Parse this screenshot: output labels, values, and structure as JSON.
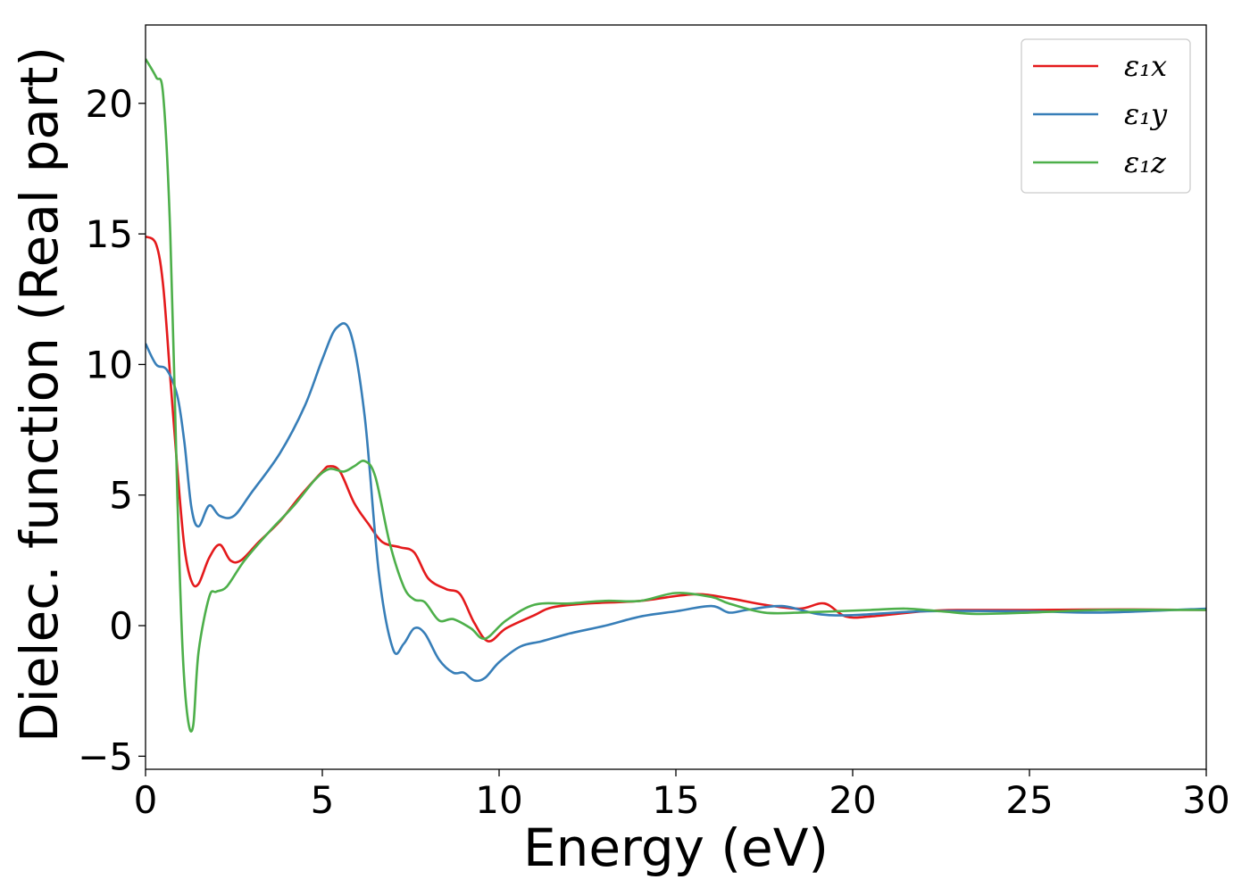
{
  "chart_data": {
    "type": "line",
    "title": "",
    "xlabel": "Energy (eV)",
    "ylabel": "Dielec. function (Real part)",
    "xlim": [
      0,
      30
    ],
    "ylim": [
      -5.5,
      23
    ],
    "xticks": [
      0,
      5,
      10,
      15,
      20,
      25,
      30
    ],
    "yticks": [
      -5,
      0,
      5,
      10,
      15,
      20
    ],
    "xtick_labels": [
      "0",
      "5",
      "10",
      "15",
      "20",
      "25",
      "30"
    ],
    "ytick_labels": [
      "−5",
      "0",
      "5",
      "10",
      "15",
      "20"
    ],
    "grid": false,
    "legend_position": "top-right",
    "legend_labels": [
      "ε₁x",
      "ε₁y",
      "ε₁z"
    ],
    "series": [
      {
        "name": "ε₁x",
        "color": "#e41a1c",
        "x": [
          0,
          0.3,
          0.5,
          0.7,
          0.9,
          1.1,
          1.3,
          1.5,
          1.8,
          2.1,
          2.4,
          2.7,
          3.2,
          3.8,
          4.4,
          5.0,
          5.2,
          5.5,
          5.9,
          6.3,
          6.7,
          7.2,
          7.6,
          8.0,
          8.5,
          8.9,
          9.3,
          9.7,
          10.2,
          11.0,
          11.5,
          12.5,
          14.0,
          15.5,
          16.5,
          17.5,
          18.5,
          19.2,
          19.8,
          20.5,
          22.0,
          23.0,
          25.0,
          27.5,
          30.0
        ],
        "y": [
          14.9,
          14.6,
          13.0,
          9.5,
          6.0,
          3.0,
          1.7,
          1.6,
          2.6,
          3.1,
          2.5,
          2.5,
          3.2,
          4.0,
          5.0,
          5.9,
          6.1,
          5.9,
          4.7,
          3.9,
          3.2,
          3.0,
          2.8,
          1.8,
          1.4,
          1.2,
          0.1,
          -0.6,
          -0.1,
          0.4,
          0.7,
          0.85,
          0.95,
          1.2,
          1.05,
          0.8,
          0.65,
          0.85,
          0.35,
          0.35,
          0.55,
          0.6,
          0.6,
          0.62,
          0.6
        ]
      },
      {
        "name": "ε₁y",
        "color": "#377eb8",
        "x": [
          0,
          0.3,
          0.6,
          0.9,
          1.1,
          1.3,
          1.5,
          1.8,
          2.1,
          2.5,
          3.0,
          3.8,
          4.5,
          5.0,
          5.4,
          5.8,
          6.2,
          6.6,
          7.0,
          7.3,
          7.6,
          7.9,
          8.3,
          8.7,
          9.0,
          9.3,
          9.6,
          10.0,
          10.6,
          11.2,
          12.0,
          13.0,
          14.0,
          15.0,
          16.0,
          16.5,
          17.0,
          18.0,
          19.0,
          20.0,
          22.0,
          25.0,
          27.0,
          30.0
        ],
        "y": [
          10.8,
          10.0,
          9.8,
          8.8,
          7.0,
          4.5,
          3.8,
          4.6,
          4.2,
          4.2,
          5.1,
          6.6,
          8.4,
          10.2,
          11.4,
          11.2,
          8.0,
          2.0,
          -0.9,
          -0.7,
          -0.1,
          -0.3,
          -1.3,
          -1.8,
          -1.8,
          -2.1,
          -2.0,
          -1.4,
          -0.8,
          -0.6,
          -0.3,
          0.0,
          0.35,
          0.55,
          0.75,
          0.5,
          0.6,
          0.75,
          0.45,
          0.4,
          0.55,
          0.55,
          0.5,
          0.65
        ]
      },
      {
        "name": "ε₁z",
        "color": "#4daf4a",
        "x": [
          0,
          0.3,
          0.5,
          0.7,
          0.9,
          1.05,
          1.2,
          1.35,
          1.5,
          1.8,
          2.0,
          2.3,
          2.8,
          3.5,
          4.2,
          4.8,
          5.2,
          5.6,
          5.9,
          6.2,
          6.5,
          6.9,
          7.3,
          7.6,
          7.9,
          8.3,
          8.7,
          9.2,
          9.6,
          10.2,
          11.0,
          12.0,
          13.0,
          14.0,
          15.0,
          16.0,
          16.5,
          17.5,
          18.5,
          19.5,
          20.5,
          21.5,
          22.5,
          23.5,
          25.0,
          27.0,
          30.0
        ],
        "y": [
          21.7,
          21.0,
          20.3,
          15.0,
          5.0,
          -1.0,
          -3.6,
          -3.8,
          -1.0,
          1.1,
          1.3,
          1.5,
          2.5,
          3.6,
          4.6,
          5.6,
          6.0,
          5.9,
          6.1,
          6.3,
          5.7,
          3.2,
          1.5,
          1.0,
          0.9,
          0.2,
          0.25,
          -0.1,
          -0.5,
          0.2,
          0.8,
          0.85,
          0.95,
          0.95,
          1.25,
          1.1,
          0.85,
          0.5,
          0.5,
          0.55,
          0.6,
          0.65,
          0.55,
          0.45,
          0.5,
          0.6,
          0.6
        ]
      }
    ]
  }
}
